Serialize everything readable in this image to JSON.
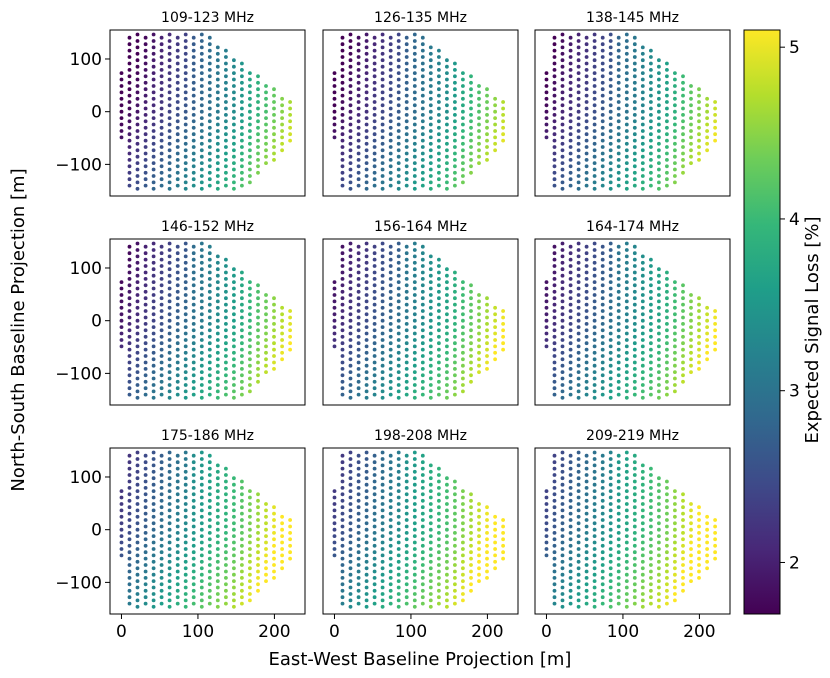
{
  "chart_data": {
    "type": "scatter",
    "panels": [
      {
        "title": "109-123 MHz",
        "color_offset": -0.35
      },
      {
        "title": "126-135 MHz",
        "color_offset": -0.3
      },
      {
        "title": "138-145 MHz",
        "color_offset": -0.2
      },
      {
        "title": "146-152 MHz",
        "color_offset": -0.1
      },
      {
        "title": "156-164 MHz",
        "color_offset": 0.0
      },
      {
        "title": "164-174 MHz",
        "color_offset": 0.0
      },
      {
        "title": "175-186 MHz",
        "color_offset": 0.35
      },
      {
        "title": "198-208 MHz",
        "color_offset": 0.4
      },
      {
        "title": "209-219 MHz",
        "color_offset": 0.5
      }
    ],
    "xlabel": "East-West Baseline Projection [m]",
    "ylabel": "North-South Baseline Projection [m]",
    "xlim": [
      -15,
      240
    ],
    "ylim": [
      -160,
      155
    ],
    "xticks": [
      0,
      100,
      200
    ],
    "xtick_labels": [
      "0",
      "100",
      "200"
    ],
    "yticks": [
      100,
      0,
      -100
    ],
    "ytick_labels": [
      "100",
      "0",
      "−100"
    ],
    "points_description_grid": {
      "x_start": 0,
      "x_step": 10.5,
      "y_step": 12.2
    },
    "colorbar": {
      "label": "Expected Signal Loss [%]",
      "range": [
        1.7,
        5.1
      ],
      "ticks": [
        2,
        3,
        4,
        5
      ],
      "tick_labels": [
        "2",
        "3",
        "4",
        "5"
      ],
      "colormap": "viridis"
    }
  }
}
